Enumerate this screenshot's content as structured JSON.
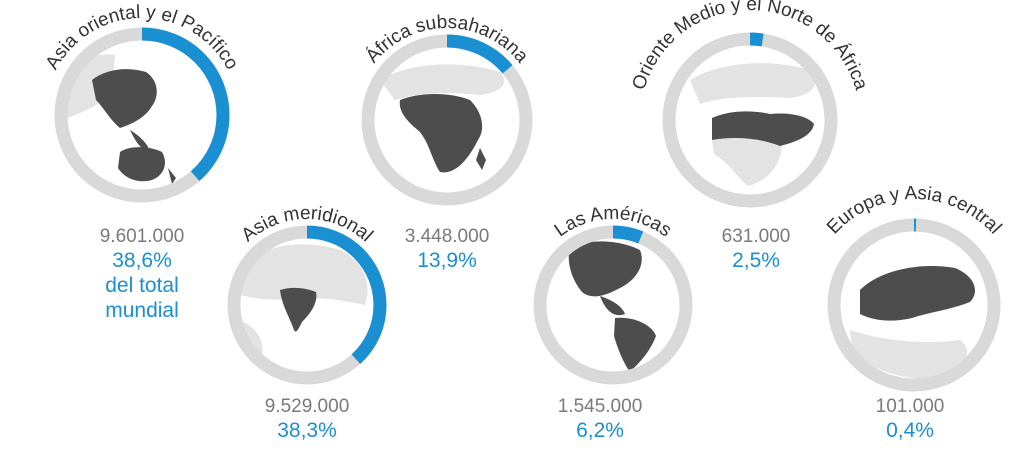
{
  "chart_data": {
    "type": "pie",
    "unit_note": "",
    "colors": {
      "ring_track": "#d9d9d9",
      "ring_value": "#1a8fd1",
      "land": "#4d4d4d",
      "land_faded": "#e3e3e3",
      "sea": "#ffffff",
      "value_text": "#7a7a7a",
      "pct_text": "#1a8fd1"
    },
    "regions": [
      {
        "name": "Asia oriental y el Pacífico",
        "value": 9601000,
        "value_label": "9.601.000",
        "percent": 38.6,
        "percent_label": "38,6%",
        "extra_lines": [
          "del total",
          "mundial"
        ]
      },
      {
        "name": "Asia meridional",
        "value": 9529000,
        "value_label": "9.529.000",
        "percent": 38.3,
        "percent_label": "38,3%",
        "extra_lines": []
      },
      {
        "name": "África subsahariana",
        "value": 3448000,
        "value_label": "3.448.000",
        "percent": 13.9,
        "percent_label": "13,9%",
        "extra_lines": []
      },
      {
        "name": "Las Américas",
        "value": 1545000,
        "value_label": "1.545.000",
        "percent": 6.2,
        "percent_label": "6,2%",
        "extra_lines": []
      },
      {
        "name": "Oriente Medio y el Norte de África",
        "value": 631000,
        "value_label": "631.000",
        "percent": 2.5,
        "percent_label": "2,5%",
        "extra_lines": []
      },
      {
        "name": "Europa y Asia central",
        "value": 101000,
        "value_label": "101.000",
        "percent": 0.4,
        "percent_label": "0,4%",
        "extra_lines": []
      }
    ]
  }
}
